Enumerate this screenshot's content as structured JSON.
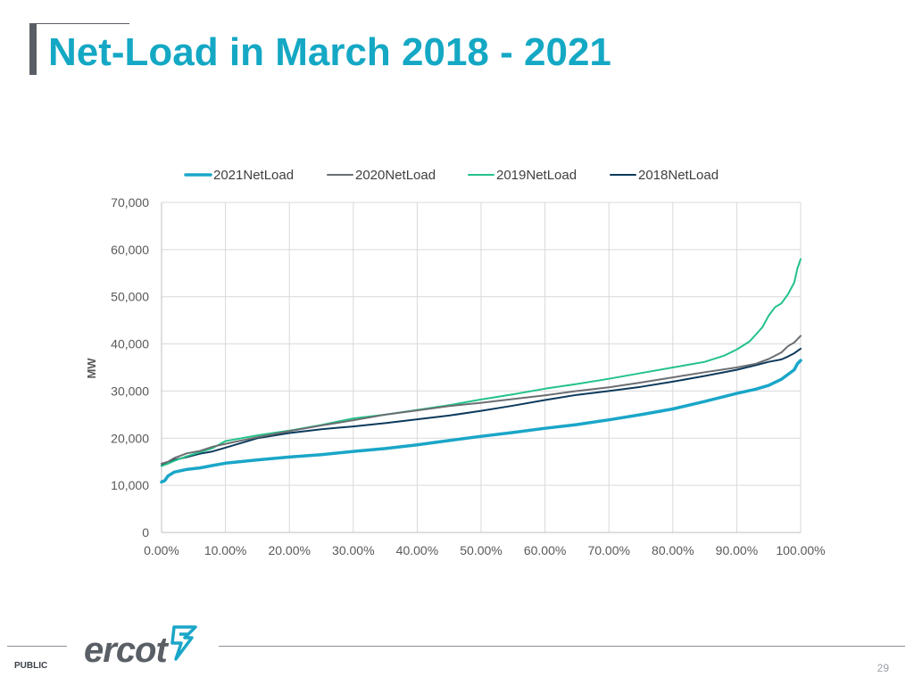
{
  "slide": {
    "title": "Net-Load in March 2018 - 2021",
    "logo_text": "ercot",
    "classification": "PUBLIC",
    "page_number": "29"
  },
  "chart_data": {
    "type": "line",
    "title": "",
    "xlabel": "",
    "ylabel": "MW",
    "xlim": [
      0,
      100
    ],
    "ylim": [
      0,
      70000
    ],
    "y_ticks": [
      0,
      10000,
      20000,
      30000,
      40000,
      50000,
      60000,
      70000
    ],
    "y_tick_labels": [
      "0",
      "10,000",
      "20,000",
      "30,000",
      "40,000",
      "50,000",
      "60,000",
      "70,000"
    ],
    "x_ticks": [
      0,
      10,
      20,
      30,
      40,
      50,
      60,
      70,
      80,
      90,
      100
    ],
    "x_tick_labels": [
      "0.00%",
      "10.00%",
      "20.00%",
      "30.00%",
      "40.00%",
      "50.00%",
      "60.00%",
      "70.00%",
      "80.00%",
      "90.00%",
      "100.00%"
    ],
    "grid": true,
    "legend_position": "top",
    "series": [
      {
        "name": "2021NetLoad",
        "color": "#1aa6c8",
        "x": [
          0,
          0.5,
          1,
          2,
          4,
          6,
          8,
          10,
          15,
          20,
          25,
          30,
          35,
          40,
          45,
          50,
          55,
          60,
          65,
          70,
          75,
          80,
          85,
          90,
          93,
          95,
          97,
          98,
          99,
          99.5,
          100
        ],
        "y": [
          10700,
          11000,
          12000,
          12800,
          13400,
          13700,
          14200,
          14700,
          15400,
          16000,
          16500,
          17200,
          17800,
          18600,
          19500,
          20400,
          21200,
          22100,
          22900,
          23900,
          25000,
          26200,
          27800,
          29500,
          30400,
          31200,
          32500,
          33500,
          34500,
          35800,
          36500
        ]
      },
      {
        "name": "2020NetLoad",
        "color": "#6b6e72",
        "x": [
          0,
          1,
          2,
          4,
          6,
          8,
          10,
          15,
          20,
          25,
          30,
          35,
          40,
          45,
          50,
          55,
          60,
          65,
          70,
          75,
          80,
          85,
          90,
          93,
          95,
          97,
          98,
          99,
          100
        ],
        "y": [
          14600,
          15000,
          15800,
          16800,
          17300,
          18200,
          18800,
          20200,
          21500,
          22700,
          23800,
          25000,
          25900,
          26800,
          27500,
          28300,
          29100,
          30000,
          30800,
          31800,
          32900,
          34000,
          35000,
          35800,
          36800,
          38200,
          39500,
          40300,
          41700
        ]
      },
      {
        "name": "2019NetLoad",
        "color": "#24c28a",
        "x": [
          0,
          1,
          2,
          4,
          6,
          8,
          10,
          15,
          20,
          25,
          30,
          35,
          40,
          45,
          50,
          55,
          60,
          65,
          70,
          75,
          80,
          85,
          88,
          90,
          92,
          93,
          94,
          95,
          96,
          97,
          98,
          99,
          99.5,
          100
        ],
        "y": [
          14100,
          14600,
          15200,
          16200,
          17000,
          17900,
          19400,
          20600,
          21600,
          22800,
          24200,
          25000,
          26000,
          27000,
          28200,
          29300,
          30500,
          31500,
          32600,
          33800,
          35000,
          36200,
          37500,
          38800,
          40500,
          42000,
          43500,
          46000,
          47800,
          48600,
          50500,
          53000,
          56000,
          58000
        ]
      },
      {
        "name": "2018NetLoad",
        "color": "#0d3a5c",
        "x": [
          0,
          1,
          2,
          4,
          6,
          8,
          10,
          15,
          20,
          25,
          30,
          35,
          40,
          45,
          50,
          55,
          60,
          65,
          70,
          75,
          80,
          85,
          90,
          93,
          95,
          97,
          98,
          99,
          100
        ],
        "y": [
          14200,
          14800,
          15400,
          16000,
          16700,
          17200,
          18000,
          20000,
          21100,
          21900,
          22500,
          23200,
          24000,
          24800,
          25800,
          26900,
          28100,
          29200,
          30000,
          30900,
          32000,
          33200,
          34500,
          35500,
          36200,
          36700,
          37300,
          38000,
          39000
        ]
      }
    ]
  }
}
